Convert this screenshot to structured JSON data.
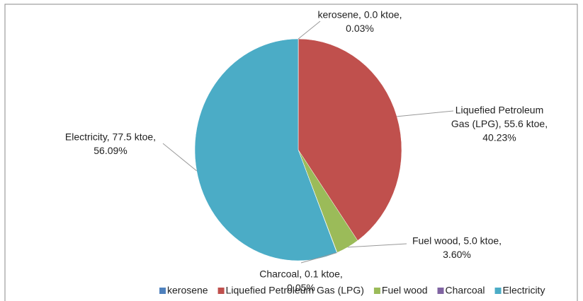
{
  "chart_data": {
    "type": "pie",
    "categories": [
      "kerosene",
      "Liquefied Petroleum Gas (LPG)",
      "Fuel wood",
      "Charcoal",
      "Electricity"
    ],
    "values": [
      0.03,
      40.23,
      3.6,
      0.05,
      56.09
    ],
    "value_labels": [
      [
        "kerosene, 0.0 ktoe,",
        "0.03%"
      ],
      [
        "Liquefied Petroleum",
        "Gas (LPG), 55.6 ktoe,",
        "40.23%"
      ],
      [
        "Fuel wood, 5.0 ktoe,",
        "3.60%"
      ],
      [
        "Charcoal, 0.1 ktoe,",
        "0.05%"
      ],
      [
        "Electricity, 77.5 ktoe,",
        "56.09%"
      ]
    ],
    "colors": [
      "#4f81bd",
      "#c0504d",
      "#9bbb59",
      "#8064a2",
      "#4bacc6"
    ],
    "legend": "bottom"
  }
}
